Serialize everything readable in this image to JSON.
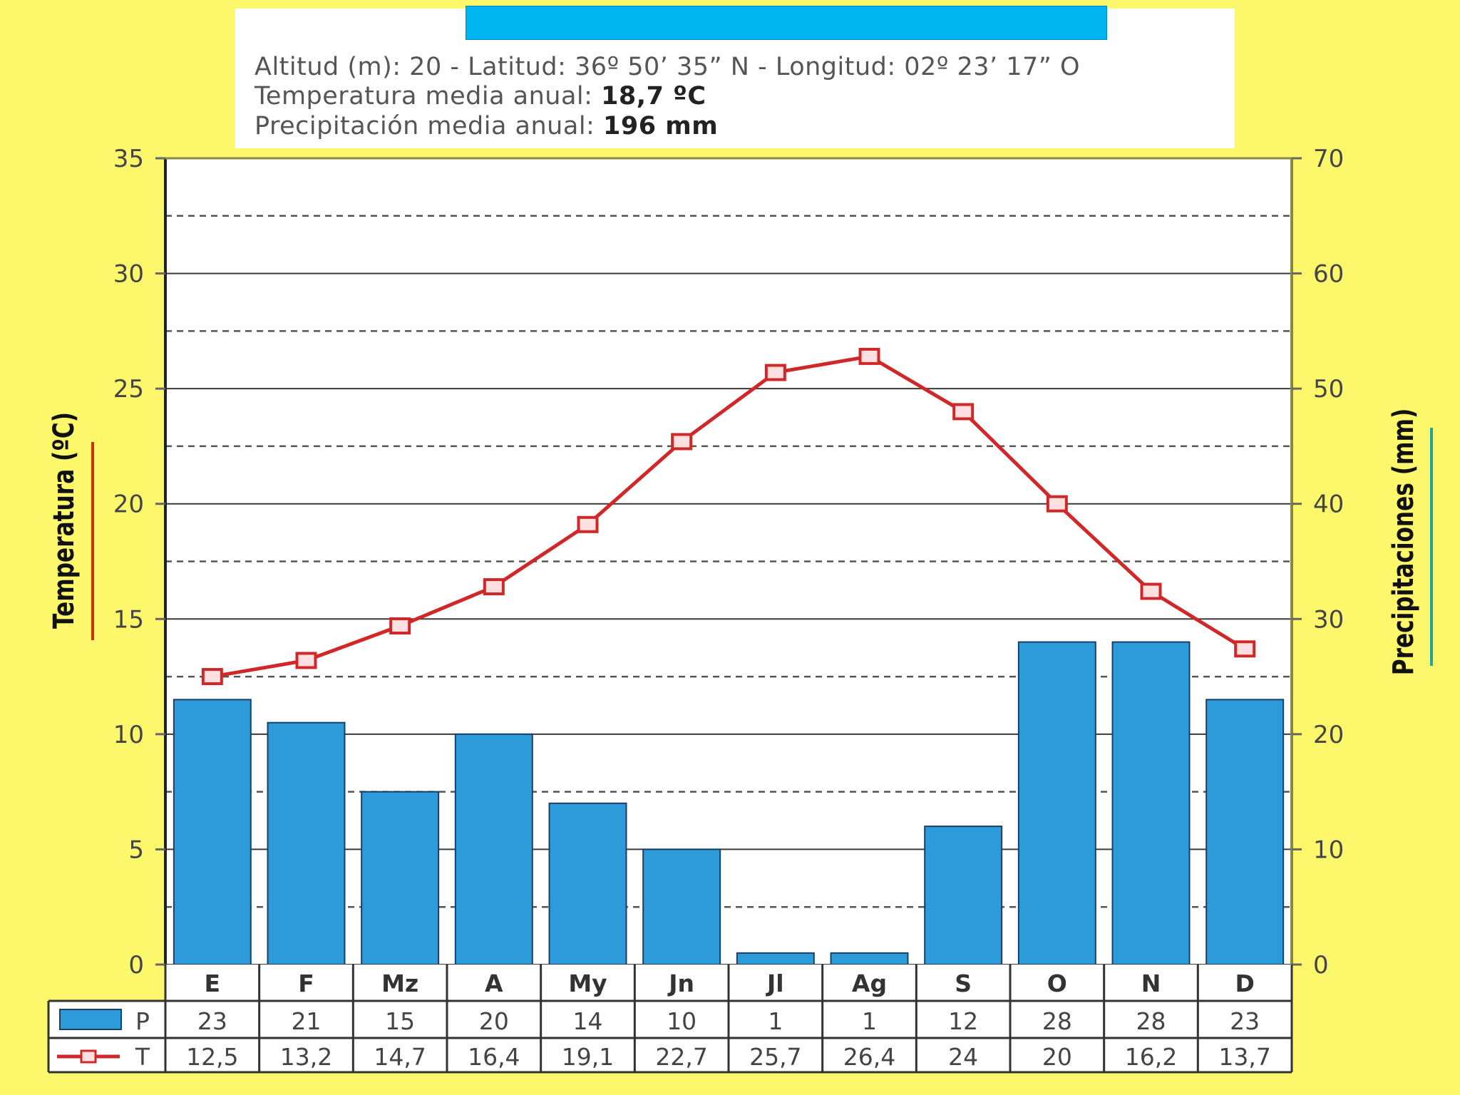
{
  "header": {
    "location": "Altitud (m): 20 - Latitud: 36º 50’ 35” N - Longitud: 02º 23’ 17” O",
    "temp_label": "Temperatura media anual:",
    "temp_value": "18,7 ºC",
    "precip_label": "Precipitación media anual:",
    "precip_value": "196 mm"
  },
  "colors": {
    "bar_fill": "#2d9bd9",
    "bar_stroke": "#1a3f66",
    "line": "#d02828",
    "marker_fill": "#ffe0e0",
    "temp_axis_accent": "#cc3300",
    "precip_axis_accent": "#2aa39a",
    "background": "#fdf86b"
  },
  "chart_data": {
    "type": "bar+line",
    "categories": [
      "E",
      "F",
      "Mz",
      "A",
      "My",
      "Jn",
      "Jl",
      "Ag",
      "S",
      "O",
      "N",
      "D"
    ],
    "series": [
      {
        "name": "P",
        "type": "bar",
        "axis": "right",
        "values": [
          23,
          21,
          15,
          20,
          14,
          10,
          1,
          1,
          12,
          28,
          28,
          23
        ]
      },
      {
        "name": "T",
        "type": "line",
        "axis": "left",
        "values": [
          12.5,
          13.2,
          14.7,
          16.4,
          19.1,
          22.7,
          25.7,
          26.4,
          24,
          20,
          16.2,
          13.7
        ]
      }
    ],
    "table": {
      "P": [
        "23",
        "21",
        "15",
        "20",
        "14",
        "10",
        "1",
        "1",
        "12",
        "28",
        "28",
        "23"
      ],
      "T": [
        "12,5",
        "13,2",
        "14,7",
        "16,4",
        "19,1",
        "22,7",
        "25,7",
        "26,4",
        "24",
        "20",
        "16,2",
        "13,7"
      ]
    },
    "ylabel_left": "Temperatura (ºC)",
    "ylabel_right": "Precipitaciones (mm)",
    "ylim_left": [
      0,
      35
    ],
    "ylim_right": [
      0,
      70
    ],
    "yticks_left": [
      0,
      5,
      10,
      15,
      20,
      25,
      30,
      35
    ],
    "yticks_right": [
      0,
      10,
      20,
      30,
      40,
      50,
      60,
      70
    ],
    "grid": "solid major, dashed minor"
  }
}
